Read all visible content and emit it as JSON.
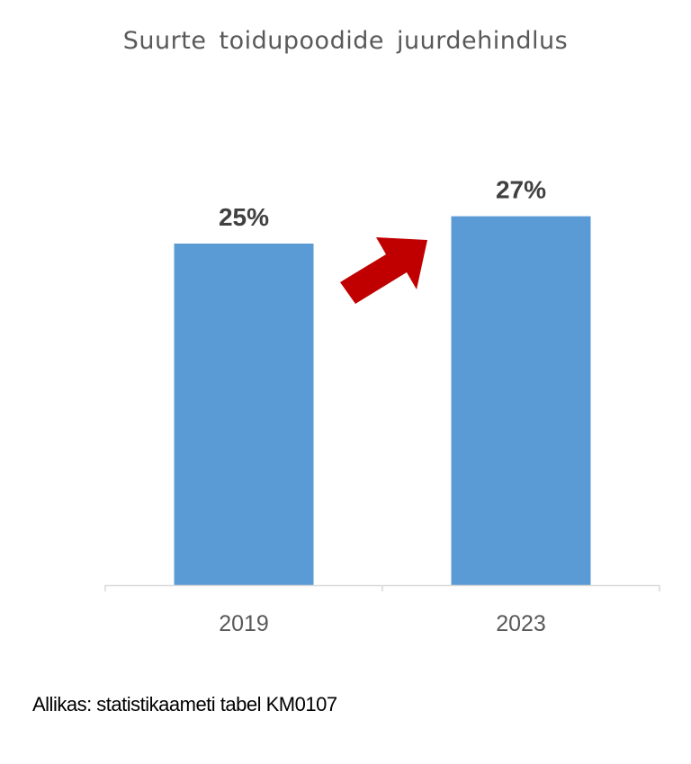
{
  "chart_data": {
    "type": "bar",
    "title": "Suurte toidupoodide juurdehindlus",
    "categories": [
      "2019",
      "2023"
    ],
    "values": [
      25,
      27
    ],
    "data_labels": [
      "25%",
      "27%"
    ],
    "ylim": [
      0,
      27.5
    ],
    "grid": false,
    "legend": "none",
    "bar_color": "#5B9BD5",
    "arrow_color": "#C00000",
    "axis_color": "#D9D9D9",
    "label_color": "#404040"
  },
  "source_note": "Allikas: statistikaameti tabel KM0107"
}
